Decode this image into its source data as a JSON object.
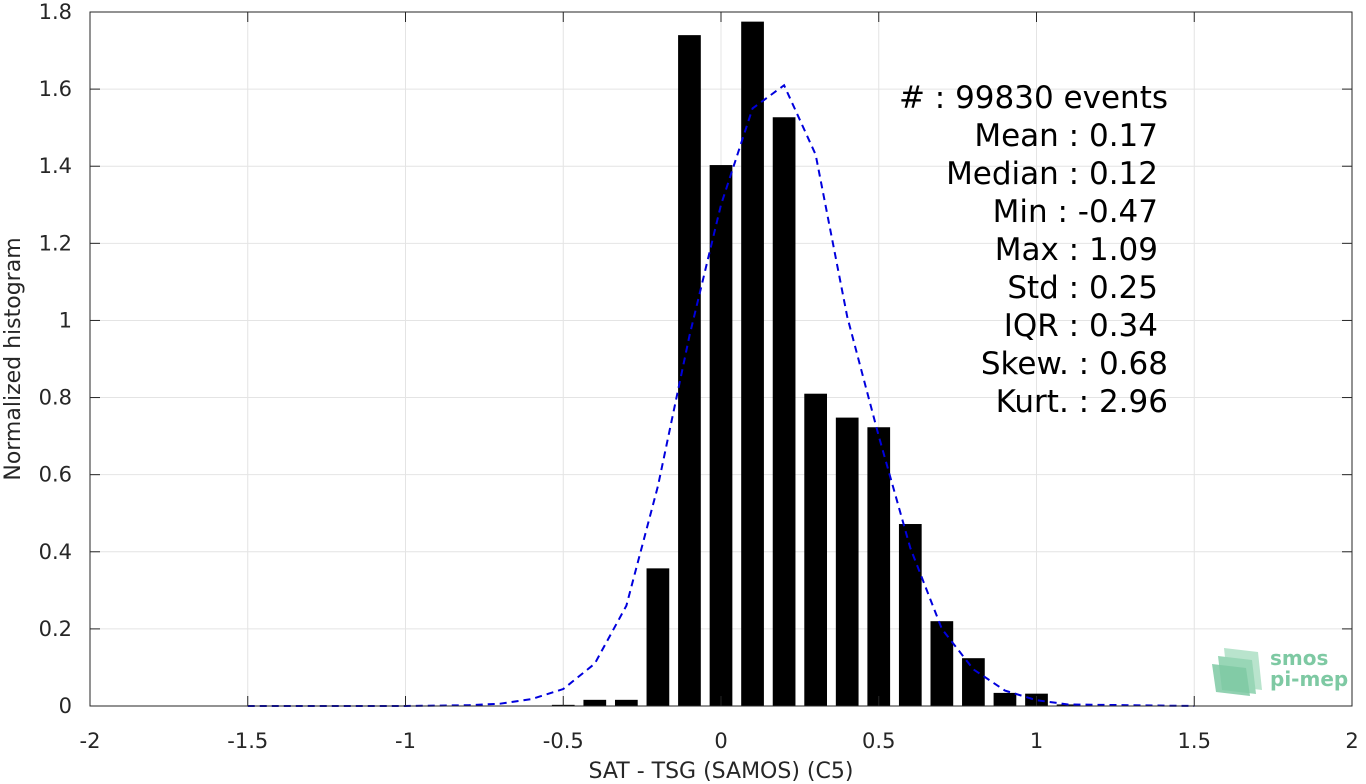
{
  "chart_data": {
    "type": "bar",
    "xlabel": "SAT - TSG (SAMOS) (C5)",
    "ylabel": "Normalized histogram",
    "xlim": [
      -2,
      2
    ],
    "ylim": [
      0,
      1.8
    ],
    "grid": true,
    "xticks": [
      "-2",
      "-1.5",
      "-1",
      "-0.5",
      "0",
      "0.5",
      "1",
      "1.5",
      "2"
    ],
    "yticks": [
      "0",
      "0.2",
      "0.4",
      "0.6",
      "0.8",
      "1",
      "1.2",
      "1.4",
      "1.6",
      "1.8"
    ],
    "bar_color": "#000000",
    "bin_width": 0.1,
    "bars": {
      "x": [
        -0.5,
        -0.4,
        -0.3,
        -0.2,
        -0.1,
        0.0,
        0.1,
        0.2,
        0.3,
        0.4,
        0.5,
        0.6,
        0.7,
        0.8,
        0.9,
        1.0,
        1.1
      ],
      "values": [
        0.003,
        0.016,
        0.016,
        0.357,
        1.74,
        1.403,
        1.775,
        1.527,
        0.81,
        0.748,
        0.723,
        0.472,
        0.22,
        0.124,
        0.034,
        0.032,
        0.004
      ]
    },
    "fit_line": {
      "style": "dashed",
      "color": "#0000dd",
      "x": [
        -1.5,
        -1.0,
        -0.8,
        -0.7,
        -0.6,
        -0.5,
        -0.4,
        -0.3,
        -0.2,
        -0.1,
        0.0,
        0.1,
        0.2,
        0.3,
        0.4,
        0.5,
        0.6,
        0.7,
        0.8,
        0.9,
        1.0,
        1.1,
        1.5
      ],
      "y": [
        0.0,
        0.0,
        0.002,
        0.006,
        0.018,
        0.044,
        0.11,
        0.26,
        0.57,
        0.96,
        1.3,
        1.55,
        1.61,
        1.43,
        1.01,
        0.7,
        0.41,
        0.2,
        0.095,
        0.04,
        0.015,
        0.004,
        0.0
      ]
    },
    "annotations": [
      "#  : 99830 events",
      "Mean : 0.17",
      "Median : 0.12",
      "Min : -0.47",
      "Max : 1.09",
      "Std : 0.25",
      "IQR : 0.34",
      "Skew. : 0.68",
      "Kurt. : 2.96"
    ]
  },
  "logo": {
    "line1": "smos",
    "line2": "pi-mep",
    "color": "#7ec9a3"
  }
}
